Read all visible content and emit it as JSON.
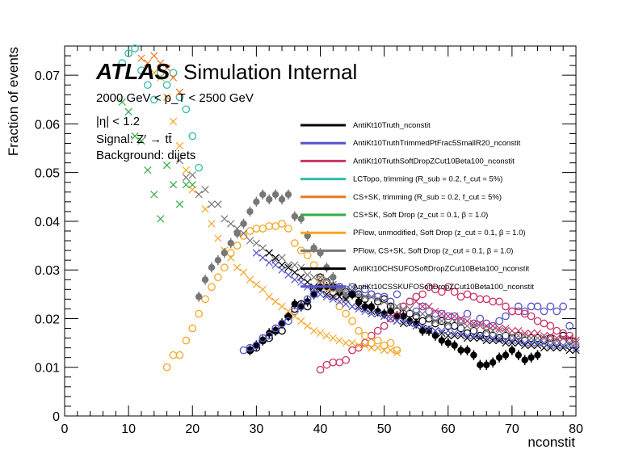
{
  "chart_data": {
    "type": "scatter",
    "title": "",
    "xlabel": "nconstit",
    "ylabel": "Fraction of events",
    "xlim": [
      0,
      80
    ],
    "ylim": [
      0,
      0.076
    ],
    "x_ticks": [
      "0",
      "10",
      "20",
      "30",
      "40",
      "50",
      "60",
      "70",
      "80"
    ],
    "y_ticks": [
      "0",
      "0.01",
      "0.02",
      "0.03",
      "0.04",
      "0.05",
      "0.06",
      "0.07"
    ],
    "grid": false,
    "legend_position": "top-right",
    "atlas_label": {
      "logo": "ATLAS",
      "text": "Simulation Internal"
    },
    "info_lines": [
      "2000 GeV < p_T < 2500 GeV",
      "|η| < 1.2",
      "Signal: Z′ → tt̄",
      "Background: dijets"
    ],
    "legend": [
      {
        "label": "AntiKt10Truth_nconstit",
        "color": "#000000"
      },
      {
        "label": "AntiKt10TruthTrimmedPtFrac5SmallR20_nconstit",
        "color": "#5555cc"
      },
      {
        "label": "AntiKt10TruthSoftDropZCut10Beta100_nconstit",
        "color": "#cc3366"
      },
      {
        "label": "LCTopo, trimming (R_sub = 0.2, f_cut = 5%)",
        "color": "#33bbaa"
      },
      {
        "label": "CS+SK, trimming (R_sub = 0.2, f_cut = 5%)",
        "color": "#e87722"
      },
      {
        "label": "CS+SK, Soft Drop (z_cut = 0.1, β = 1.0)",
        "color": "#33aa44"
      },
      {
        "label": "PFlow, unmodified, Soft Drop (z_cut = 0.1, β = 1.0)",
        "color": "#f5a623"
      },
      {
        "label": "PFlow, CS+SK, Soft Drop (z_cut = 0.1, β = 1.0)",
        "color": "#777777"
      },
      {
        "label": "AntiKt10CHSUFOSoftDropZCut10Beta100_nconstit",
        "color": "#000000"
      },
      {
        "label": "AntiKt10CSSKUFOSoftDropZCut10Beta100_nconstit",
        "color": "#5555cc"
      }
    ],
    "series": [
      {
        "color": "#000000",
        "marker": "circle-open",
        "x": [
          29,
          30,
          31,
          32,
          33,
          34,
          35,
          36,
          37,
          38,
          39,
          40,
          41,
          42,
          43,
          44,
          45,
          46,
          47,
          48,
          49,
          50,
          51,
          52,
          53,
          54,
          55,
          56,
          57,
          58,
          59,
          60,
          61,
          62,
          63,
          64,
          65,
          66,
          67,
          68,
          69,
          70,
          71,
          72,
          73,
          74,
          75,
          76,
          77,
          78,
          79
        ],
        "y": [
          0.0135,
          0.014,
          0.0155,
          0.016,
          0.0175,
          0.0175,
          0.0205,
          0.022,
          0.023,
          0.0225,
          0.026,
          0.0285,
          0.0275,
          0.0265,
          0.0265,
          0.0255,
          0.025,
          0.025,
          0.024,
          0.025,
          0.0235,
          0.024,
          0.0225,
          0.0215,
          0.021,
          0.021,
          0.0205,
          0.0195,
          0.02,
          0.019,
          0.0195,
          0.0185,
          0.0185,
          0.018,
          0.017,
          0.0175,
          0.0165,
          0.017,
          0.0165,
          0.016,
          0.0165,
          0.016,
          0.0165,
          0.0155,
          0.016,
          0.016,
          0.0155,
          0.016,
          0.015,
          0.0165,
          0.0155
        ]
      },
      {
        "color": "#000000",
        "marker": "circle-closed",
        "x": [
          29,
          30,
          31,
          32,
          33,
          34,
          35,
          36,
          37,
          38,
          39,
          40,
          41,
          42,
          43,
          44,
          45,
          46,
          47,
          48,
          49,
          50,
          51,
          52,
          53,
          54,
          55,
          56,
          57,
          58,
          59,
          60,
          61,
          62,
          63,
          64,
          65,
          66,
          67,
          68,
          69,
          70,
          71,
          72,
          73,
          74
        ],
        "y": [
          0.0135,
          0.0145,
          0.0155,
          0.017,
          0.0175,
          0.019,
          0.0205,
          0.023,
          0.0225,
          0.0235,
          0.025,
          0.0265,
          0.0265,
          0.0265,
          0.0255,
          0.0245,
          0.025,
          0.0235,
          0.0225,
          0.0225,
          0.0215,
          0.021,
          0.0215,
          0.0205,
          0.0205,
          0.0195,
          0.019,
          0.0175,
          0.0175,
          0.0165,
          0.0155,
          0.015,
          0.0145,
          0.0135,
          0.0135,
          0.0125,
          0.0105,
          0.0105,
          0.011,
          0.012,
          0.0125,
          0.0135,
          0.0125,
          0.0115,
          0.012,
          0.0125
        ]
      },
      {
        "color": "#5555cc",
        "marker": "circle-open",
        "x": [
          28,
          29,
          30,
          31,
          32,
          33,
          34,
          35,
          36,
          37,
          38,
          39,
          40,
          41,
          42,
          43,
          44,
          45,
          46,
          47,
          48,
          49,
          50,
          51,
          52,
          53,
          54,
          55,
          56,
          57,
          58,
          59,
          60,
          61,
          62,
          63,
          64,
          65,
          66,
          67,
          68,
          69,
          70,
          71,
          72,
          73,
          74,
          75,
          76,
          77,
          78,
          79
        ],
        "y": [
          0.0135,
          0.014,
          0.0145,
          0.016,
          0.0165,
          0.018,
          0.019,
          0.0195,
          0.0215,
          0.0225,
          0.024,
          0.025,
          0.027,
          0.0265,
          0.0255,
          0.0265,
          0.026,
          0.0265,
          0.0255,
          0.026,
          0.025,
          0.0245,
          0.0245,
          0.0235,
          0.025,
          0.0225,
          0.0235,
          0.0215,
          0.0225,
          0.0215,
          0.021,
          0.021,
          0.0205,
          0.0205,
          0.0195,
          0.021,
          0.019,
          0.02,
          0.019,
          0.0185,
          0.0195,
          0.0205,
          0.0215,
          0.0225,
          0.0215,
          0.0225,
          0.0225,
          0.0215,
          0.0225,
          0.0215,
          0.0225,
          0.0185
        ]
      },
      {
        "color": "#cc3366",
        "marker": "circle-open",
        "x": [
          40,
          41,
          42,
          43,
          44,
          45,
          46,
          47,
          48,
          49,
          50,
          51,
          52,
          53,
          54,
          55,
          56,
          57,
          58,
          59,
          60,
          61,
          62,
          63,
          64,
          65,
          66,
          67,
          68,
          69,
          70,
          71,
          72,
          73,
          74,
          75,
          76,
          77,
          78,
          79
        ],
        "y": [
          0.0095,
          0.0105,
          0.011,
          0.011,
          0.0115,
          0.0135,
          0.014,
          0.015,
          0.0165,
          0.0175,
          0.0185,
          0.02,
          0.0205,
          0.0225,
          0.0235,
          0.0245,
          0.025,
          0.0265,
          0.026,
          0.0255,
          0.0265,
          0.0255,
          0.0245,
          0.025,
          0.0245,
          0.024,
          0.024,
          0.0235,
          0.0235,
          0.0225,
          0.0215,
          0.0215,
          0.021,
          0.0205,
          0.0195,
          0.019,
          0.0185,
          0.0175,
          0.017,
          0.0165
        ]
      },
      {
        "color": "#33bbaa",
        "marker": "circle-open",
        "x": [
          9,
          10,
          11,
          12,
          13,
          14,
          15,
          16,
          17,
          18,
          19,
          20,
          21
        ],
        "y": [
          0.0725,
          0.0745,
          0.0755,
          0.071,
          0.068,
          0.065,
          0.0705,
          0.068,
          0.0705,
          0.0655,
          0.063,
          0.0575,
          0.051
        ]
      },
      {
        "color": "#e87722",
        "marker": "x",
        "x": [
          12,
          13,
          14,
          15,
          16,
          17,
          18
        ],
        "y": [
          0.0735,
          0.0725,
          0.074,
          0.0725,
          0.0715,
          0.0695,
          0.0665
        ]
      },
      {
        "color": "#33aa44",
        "marker": "x",
        "x": [
          9,
          10,
          11,
          12,
          13,
          14,
          15,
          16,
          17,
          18,
          19,
          20
        ],
        "y": [
          0.0645,
          0.0625,
          0.0575,
          0.0565,
          0.0505,
          0.0455,
          0.0405,
          0.0515,
          0.0475,
          0.0435,
          0.0475,
          0.0475
        ]
      },
      {
        "color": "#f5a623",
        "marker": "circle-open",
        "x": [
          16,
          17,
          18,
          19,
          20,
          21,
          22,
          23,
          24,
          25,
          26,
          27,
          28,
          29,
          30,
          31,
          32,
          33,
          34,
          35,
          36,
          37,
          38,
          39,
          40,
          41,
          42,
          43,
          44,
          45,
          46,
          47,
          48,
          49,
          50,
          51,
          52
        ],
        "y": [
          0.01,
          0.0125,
          0.0125,
          0.0155,
          0.018,
          0.021,
          0.024,
          0.0265,
          0.0285,
          0.0305,
          0.0335,
          0.035,
          0.037,
          0.038,
          0.0385,
          0.0385,
          0.039,
          0.039,
          0.0395,
          0.0385,
          0.0355,
          0.034,
          0.033,
          0.031,
          0.028,
          0.0265,
          0.025,
          0.0225,
          0.021,
          0.0195,
          0.0175,
          0.0165,
          0.015,
          0.0155,
          0.0145,
          0.015,
          0.0135
        ]
      },
      {
        "color": "#f5a623",
        "marker": "x",
        "x": [
          14,
          15,
          16,
          17,
          18,
          19,
          20,
          21,
          22,
          23,
          24,
          25,
          26,
          27,
          28,
          29,
          30,
          31,
          32,
          33,
          34,
          35,
          36,
          37,
          38,
          39,
          40,
          41,
          42,
          43,
          44,
          45,
          46,
          47,
          48,
          49,
          50,
          51,
          52
        ],
        "y": [
          0.0705,
          0.0695,
          0.0655,
          0.0605,
          0.0555,
          0.0505,
          0.0465,
          0.0455,
          0.0425,
          0.0395,
          0.0365,
          0.034,
          0.0325,
          0.0305,
          0.0295,
          0.028,
          0.027,
          0.026,
          0.0245,
          0.0235,
          0.0225,
          0.0215,
          0.0205,
          0.0195,
          0.0185,
          0.0175,
          0.017,
          0.0165,
          0.016,
          0.0155,
          0.015,
          0.015,
          0.0145,
          0.0145,
          0.014,
          0.014,
          0.0135,
          0.0135,
          0.013
        ]
      },
      {
        "color": "#777777",
        "marker": "circle-closed",
        "x": [
          21,
          22,
          23,
          24,
          25,
          26,
          27,
          28,
          29,
          30,
          31,
          32,
          33,
          34,
          35,
          36,
          37,
          38,
          39,
          40,
          41,
          42,
          43,
          44
        ],
        "y": [
          0.0245,
          0.028,
          0.0305,
          0.032,
          0.0335,
          0.0355,
          0.0375,
          0.0395,
          0.042,
          0.044,
          0.0455,
          0.0445,
          0.0455,
          0.0445,
          0.0455,
          0.041,
          0.0405,
          0.037,
          0.0345,
          0.0335,
          0.0305,
          0.0285,
          0.026,
          0.0245
        ]
      },
      {
        "color": "#777777",
        "marker": "x",
        "x": [
          18,
          19,
          20,
          21,
          22,
          23,
          24,
          25,
          26,
          27,
          28,
          29,
          30,
          31,
          32,
          33,
          34,
          35,
          36,
          37,
          38,
          39,
          40,
          41,
          42,
          43,
          44,
          45,
          46,
          47,
          48,
          49,
          50,
          51,
          52,
          53,
          54,
          55,
          56,
          57,
          58,
          59,
          60,
          61,
          62,
          63,
          64,
          65,
          66,
          67,
          68,
          69,
          70,
          71,
          72,
          73,
          74,
          75,
          76,
          77,
          78,
          79,
          80
        ],
        "y": [
          0.0525,
          0.049,
          0.0495,
          0.0455,
          0.0465,
          0.0435,
          0.0435,
          0.0405,
          0.0395,
          0.0385,
          0.0375,
          0.036,
          0.0355,
          0.0345,
          0.0335,
          0.032,
          0.0325,
          0.031,
          0.031,
          0.0305,
          0.029,
          0.0285,
          0.0285,
          0.028,
          0.027,
          0.0265,
          0.026,
          0.0265,
          0.025,
          0.0245,
          0.0245,
          0.024,
          0.0235,
          0.0225,
          0.0225,
          0.022,
          0.022,
          0.021,
          0.021,
          0.0205,
          0.0195,
          0.0195,
          0.019,
          0.0195,
          0.019,
          0.0185,
          0.0185,
          0.0185,
          0.0175,
          0.0175,
          0.0175,
          0.0175,
          0.0165,
          0.0165,
          0.0165,
          0.016,
          0.016,
          0.016,
          0.0155,
          0.0155,
          0.016,
          0.015,
          0.015
        ]
      },
      {
        "color": "#000000",
        "marker": "x",
        "x": [
          32,
          33,
          34,
          35,
          36,
          37,
          38,
          39,
          40,
          41,
          42,
          43,
          44,
          45,
          46,
          47,
          48,
          49,
          50,
          51,
          52,
          53,
          54,
          55,
          56,
          57,
          58,
          59,
          60,
          61,
          62,
          63,
          64,
          65,
          66,
          67,
          68,
          69,
          70,
          71,
          72,
          73,
          74,
          75,
          76,
          77,
          78,
          79,
          80
        ],
        "y": [
          0.0335,
          0.0325,
          0.031,
          0.0305,
          0.0295,
          0.0285,
          0.0275,
          0.0265,
          0.026,
          0.025,
          0.0245,
          0.0245,
          0.024,
          0.0225,
          0.0225,
          0.022,
          0.0215,
          0.021,
          0.0205,
          0.02,
          0.0195,
          0.019,
          0.019,
          0.0185,
          0.018,
          0.0175,
          0.0175,
          0.017,
          0.0165,
          0.0165,
          0.0165,
          0.016,
          0.016,
          0.016,
          0.0155,
          0.0155,
          0.0155,
          0.015,
          0.015,
          0.015,
          0.0145,
          0.0145,
          0.0145,
          0.014,
          0.014,
          0.014,
          0.014,
          0.0135,
          0.0135
        ]
      },
      {
        "color": "#5555cc",
        "marker": "x",
        "x": [
          30,
          31,
          32,
          33,
          34,
          35,
          36,
          37,
          38,
          39,
          40,
          41,
          42,
          43,
          44,
          45,
          46,
          47,
          48,
          49,
          50,
          51,
          52,
          53,
          54,
          55,
          56,
          57,
          58,
          59,
          60,
          61,
          62,
          63,
          64,
          65,
          66,
          67,
          68,
          69,
          70,
          71,
          72,
          73,
          74,
          75,
          76,
          77,
          78,
          79,
          80
        ],
        "y": [
          0.0335,
          0.0325,
          0.0315,
          0.031,
          0.03,
          0.029,
          0.028,
          0.0275,
          0.0265,
          0.026,
          0.025,
          0.0245,
          0.024,
          0.0235,
          0.023,
          0.0225,
          0.022,
          0.0215,
          0.021,
          0.021,
          0.0205,
          0.02,
          0.0195,
          0.0195,
          0.019,
          0.0185,
          0.0185,
          0.018,
          0.0175,
          0.0175,
          0.0175,
          0.017,
          0.017,
          0.0165,
          0.0165,
          0.0165,
          0.016,
          0.016,
          0.016,
          0.0155,
          0.0155,
          0.0155,
          0.015,
          0.015,
          0.015,
          0.015,
          0.0145,
          0.0145,
          0.0145,
          0.0145,
          0.014
        ]
      },
      {
        "color": "#cc3366",
        "marker": "x",
        "x": [
          55,
          56,
          57,
          58,
          59,
          60,
          61,
          62,
          63,
          64,
          65,
          66,
          67,
          68,
          69,
          70,
          71,
          72,
          73,
          74,
          75,
          76,
          77,
          78,
          79,
          80
        ],
        "y": [
          0.0235,
          0.0225,
          0.0225,
          0.0215,
          0.021,
          0.0205,
          0.0205,
          0.02,
          0.0195,
          0.019,
          0.019,
          0.0185,
          0.0185,
          0.018,
          0.018,
          0.0175,
          0.0175,
          0.017,
          0.017,
          0.017,
          0.0165,
          0.0165,
          0.016,
          0.016,
          0.016,
          0.0155
        ]
      }
    ]
  }
}
